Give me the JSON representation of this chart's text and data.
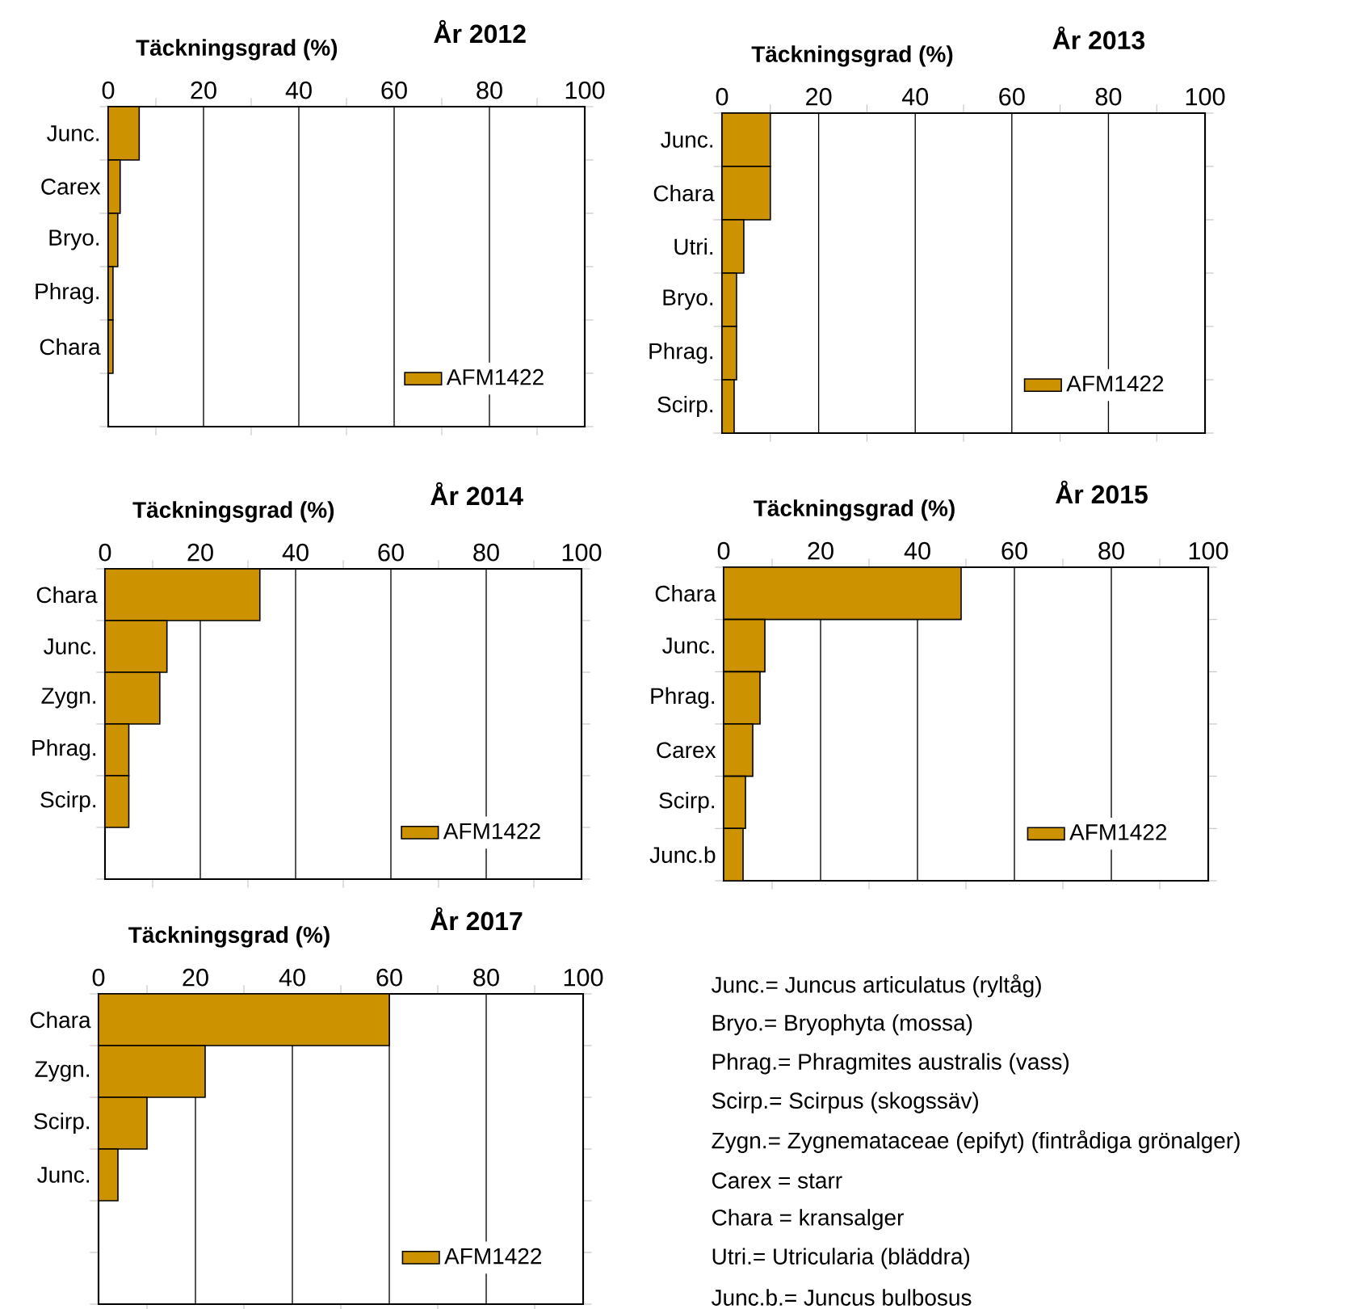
{
  "chart_data": [
    {
      "type": "bar",
      "orientation": "horizontal",
      "title": "År 2012",
      "xlabel": "Täckningsgrad  (%)",
      "categories": [
        "Junc.",
        "Carex",
        "Bryo.",
        "Phrag.",
        "Chara",
        null
      ],
      "series": [
        {
          "name": "AFM1422",
          "color": "#cc9200",
          "values": [
            6.5,
            2.5,
            2,
            1,
            1,
            null
          ]
        }
      ],
      "xlim": [
        0,
        100
      ],
      "xticks": [
        0,
        20,
        40,
        60,
        80,
        100
      ],
      "grid": "x",
      "legend": "bottom right"
    },
    {
      "type": "bar",
      "orientation": "horizontal",
      "title": "År 2013",
      "xlabel": "Täckningsgrad  (%)",
      "categories": [
        "Junc.",
        "Chara",
        "Utri.",
        "Bryo.",
        "Phrag.",
        "Scirp."
      ],
      "series": [
        {
          "name": "AFM1422",
          "color": "#cc9200",
          "values": [
            10,
            10,
            4.5,
            3,
            3,
            2.5
          ]
        }
      ],
      "xlim": [
        0,
        100
      ],
      "xticks": [
        0,
        20,
        40,
        60,
        80,
        100
      ],
      "grid": "x",
      "legend": "bottom right"
    },
    {
      "type": "bar",
      "orientation": "horizontal",
      "title": "År 2014",
      "xlabel": "Täckningsgrad  (%)",
      "categories": [
        "Chara",
        "Junc.",
        "Zygn.",
        "Phrag.",
        "Scirp.",
        null
      ],
      "series": [
        {
          "name": "AFM1422",
          "color": "#cc9200",
          "values": [
            32.5,
            13,
            11.5,
            5,
            5,
            null
          ]
        }
      ],
      "xlim": [
        0,
        100
      ],
      "xticks": [
        0,
        20,
        40,
        60,
        80,
        100
      ],
      "grid": "x",
      "legend": "bottom right"
    },
    {
      "type": "bar",
      "orientation": "horizontal",
      "title": "År 2015",
      "xlabel": "Täckningsgrad  (%)",
      "categories": [
        "Chara",
        "Junc.",
        "Phrag.",
        "Carex",
        "Scirp.",
        "Junc.b"
      ],
      "series": [
        {
          "name": "AFM1422",
          "color": "#cc9200",
          "values": [
            49,
            8.5,
            7.5,
            6,
            4.5,
            4
          ]
        }
      ],
      "xlim": [
        0,
        100
      ],
      "xticks": [
        0,
        20,
        40,
        60,
        80,
        100
      ],
      "grid": "x",
      "legend": "bottom right"
    },
    {
      "type": "bar",
      "orientation": "horizontal",
      "title": "År 2017",
      "xlabel": "Täckningsgrad  (%)",
      "categories": [
        "Chara",
        "Zygn.",
        "Scirp.",
        "Junc.",
        null,
        null
      ],
      "series": [
        {
          "name": "AFM1422",
          "color": "#cc9200",
          "values": [
            60,
            22,
            10,
            4,
            null,
            null
          ]
        }
      ],
      "xlim": [
        0,
        100
      ],
      "xticks": [
        0,
        20,
        40,
        60,
        80,
        100
      ],
      "grid": "x",
      "legend": "bottom right"
    },
    {
      "type": "other",
      "annotations": [
        "Junc.= Juncus articulatus (ryltåg)",
        "Bryo.= Bryophyta (mossa)",
        "Phrag.= Phragmites australis (vass)",
        "Scirp.= Scirpus (skogssäv)",
        "Zygn.= Zygnemataceae (epifyt) (fintrådiga grönalger)",
        "Carex = starr",
        "Chara = kransalger",
        "Utri.= Utricularia (bläddra)",
        "Junc.b.= Juncus bulbosus"
      ]
    }
  ]
}
